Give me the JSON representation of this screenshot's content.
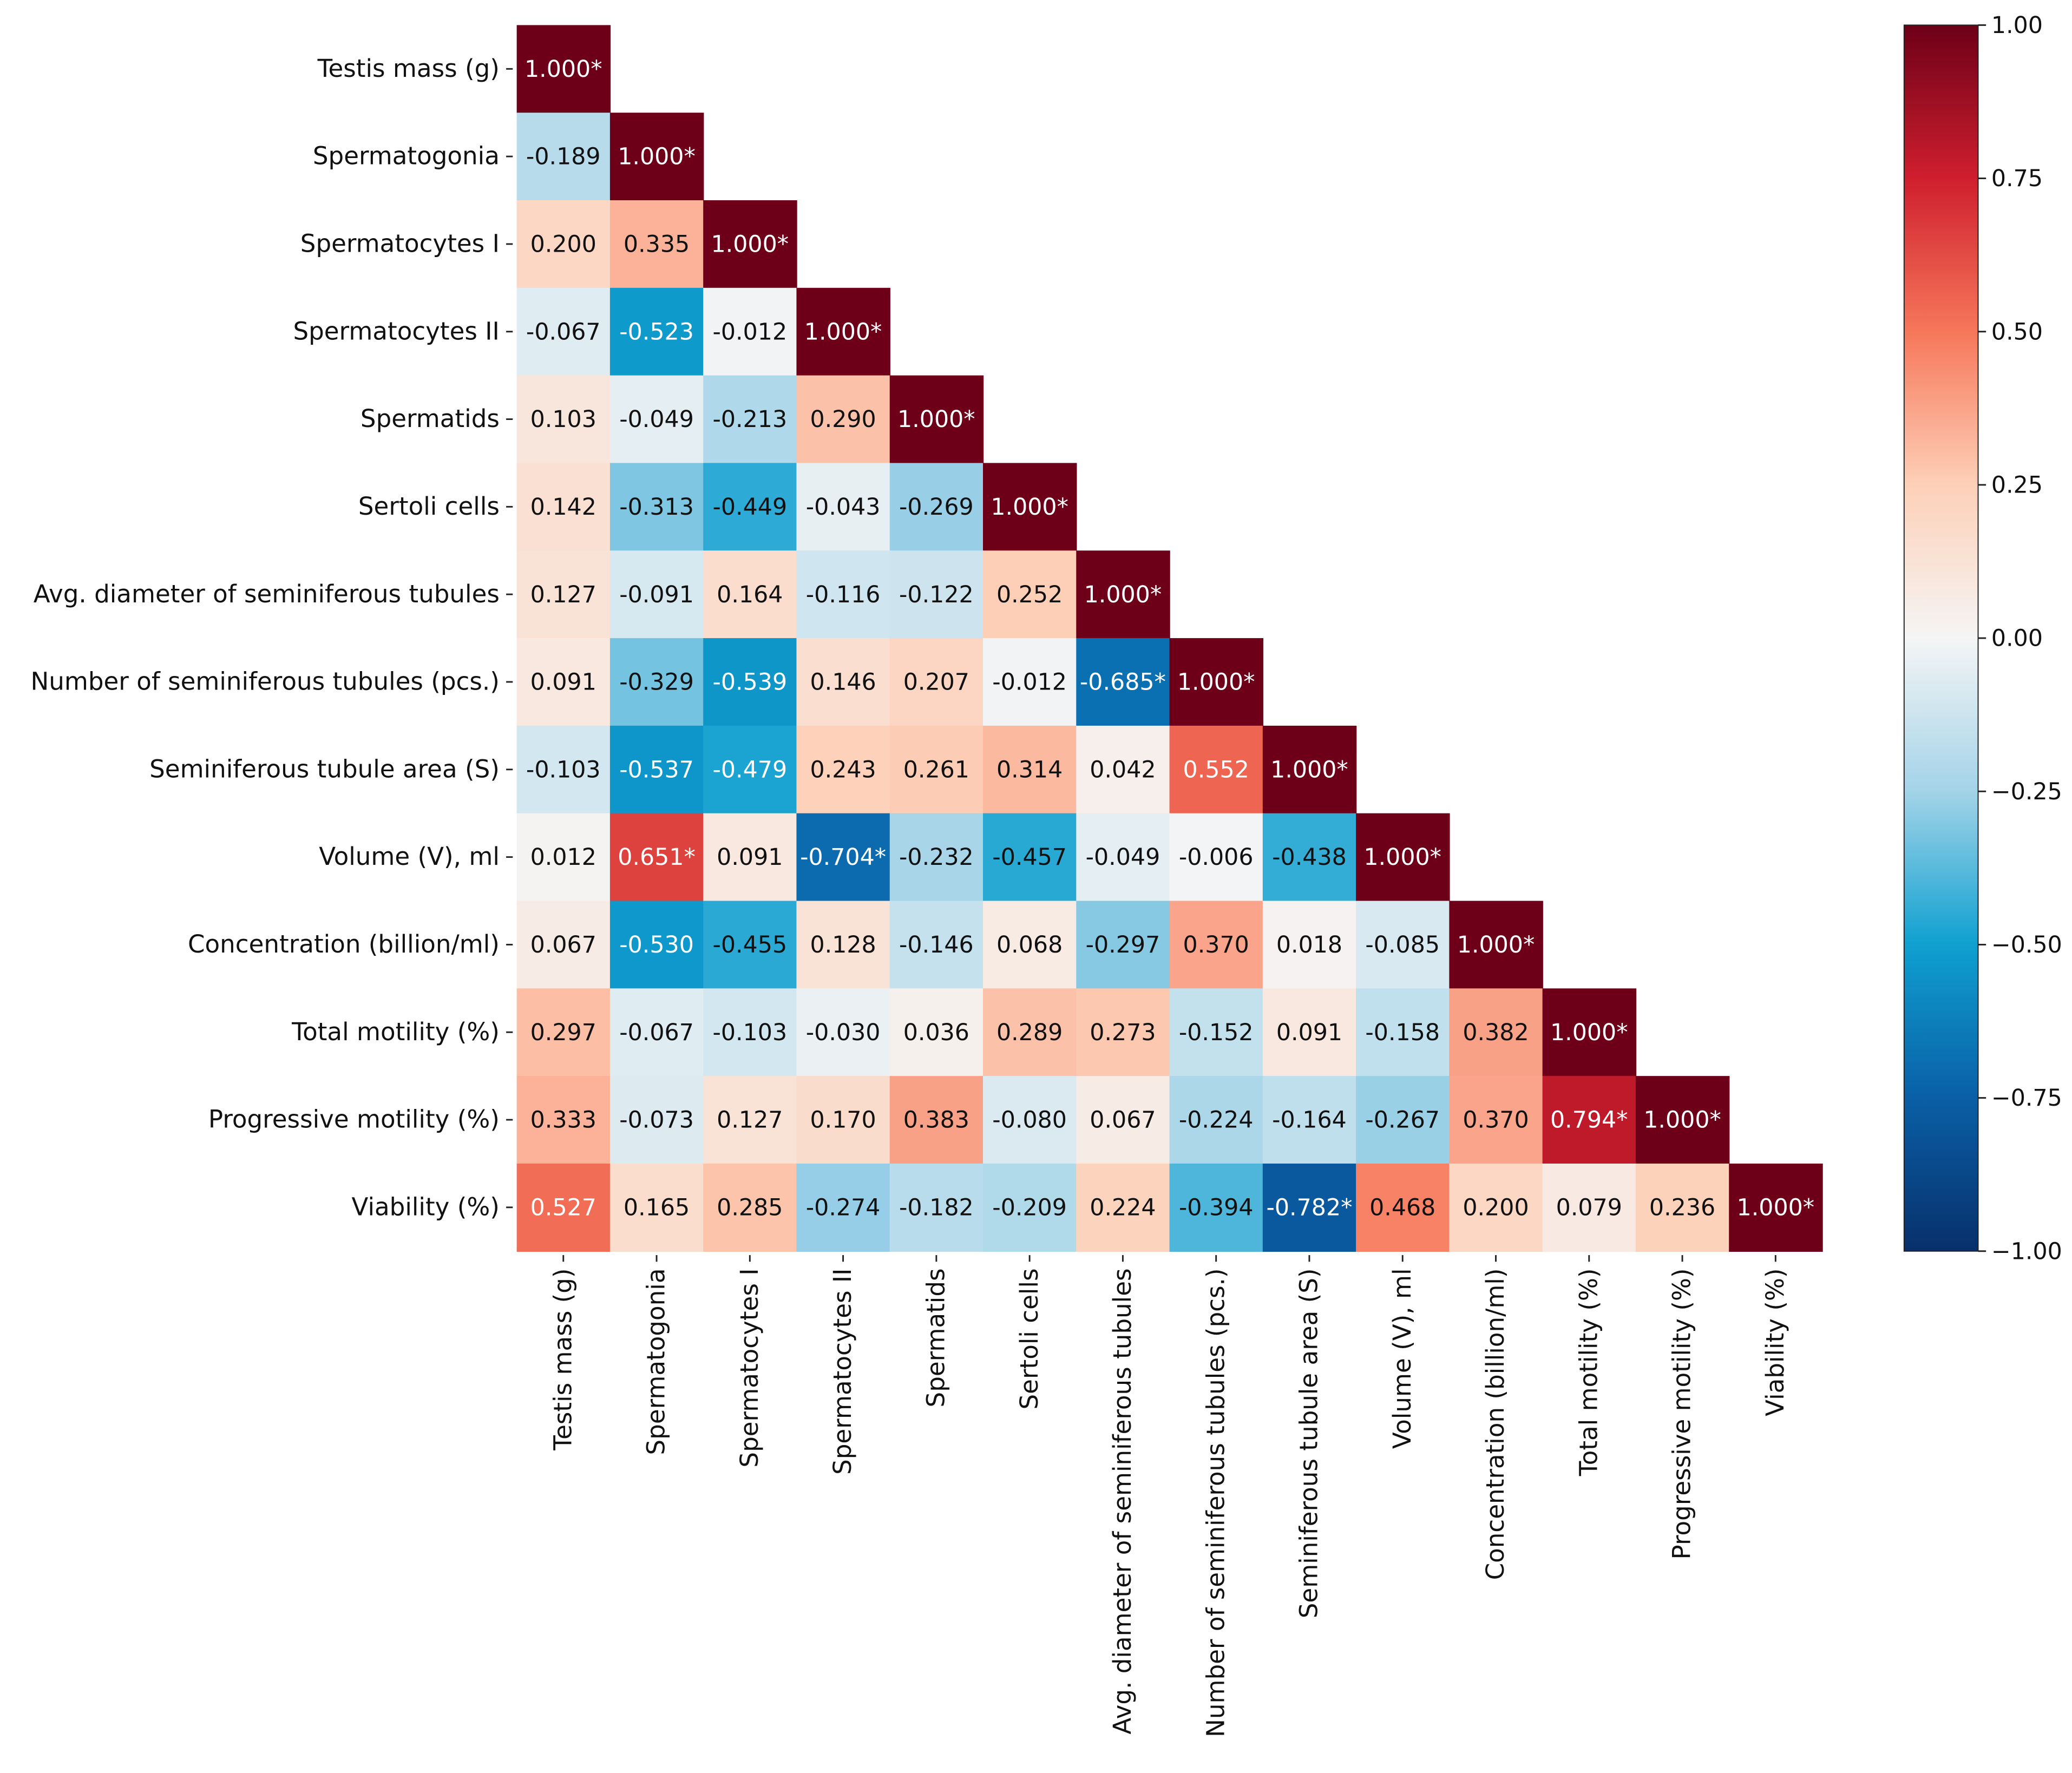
{
  "chart_data": {
    "type": "heatmap",
    "title": "",
    "labels": [
      "Testis mass (g)",
      "Spermatogonia",
      "Spermatocytes I",
      "Spermatocytes II",
      "Spermatids",
      "Sertoli cells",
      "Avg. diameter of seminiferous tubules",
      "Number of seminiferous tubules (pcs.)",
      "Seminiferous tubule area (S)",
      "Volume (V), ml",
      "Concentration (billion/ml)",
      "Total motility (%)",
      "Progressive motility (%)",
      "Viability (%)"
    ],
    "triangle": "lower",
    "annotations": [
      [
        "1.000*"
      ],
      [
        "-0.189",
        "1.000*"
      ],
      [
        "0.200",
        "0.335",
        "1.000*"
      ],
      [
        "-0.067",
        "-0.523",
        "-0.012",
        "1.000*"
      ],
      [
        "0.103",
        "-0.049",
        "-0.213",
        "0.290",
        "1.000*"
      ],
      [
        "0.142",
        "-0.313",
        "-0.449",
        "-0.043",
        "-0.269",
        "1.000*"
      ],
      [
        "0.127",
        "-0.091",
        "0.164",
        "-0.116",
        "-0.122",
        "0.252",
        "1.000*"
      ],
      [
        "0.091",
        "-0.329",
        "-0.539",
        "0.146",
        "0.207",
        "-0.012",
        "-0.685*",
        "1.000*"
      ],
      [
        "-0.103",
        "-0.537",
        "-0.479",
        "0.243",
        "0.261",
        "0.314",
        "0.042",
        "0.552",
        "1.000*"
      ],
      [
        "0.012",
        "0.651*",
        "0.091",
        "-0.704*",
        "-0.232",
        "-0.457",
        "-0.049",
        "-0.006",
        "-0.438",
        "1.000*"
      ],
      [
        "0.067",
        "-0.530",
        "-0.455",
        "0.128",
        "-0.146",
        "0.068",
        "-0.297",
        "0.370",
        "0.018",
        "-0.085",
        "1.000*"
      ],
      [
        "0.297",
        "-0.067",
        "-0.103",
        "-0.030",
        "0.036",
        "0.289",
        "0.273",
        "-0.152",
        "0.091",
        "-0.158",
        "0.382",
        "1.000*"
      ],
      [
        "0.333",
        "-0.073",
        "0.127",
        "0.170",
        "0.383",
        "-0.080",
        "0.067",
        "-0.224",
        "-0.164",
        "-0.267",
        "0.370",
        "0.794*",
        "1.000*"
      ],
      [
        "0.527",
        "0.165",
        "0.285",
        "-0.274",
        "-0.182",
        "-0.209",
        "0.224",
        "-0.394",
        "-0.782*",
        "0.468",
        "0.200",
        "0.079",
        "0.236",
        "1.000*"
      ]
    ],
    "colorbar": {
      "range": [
        -1,
        1
      ],
      "ticks": [
        "1.00",
        "0.75",
        "0.50",
        "0.25",
        "0.00",
        "−0.25",
        "−0.50",
        "−0.75",
        "−1.00"
      ],
      "tick_values": [
        1,
        0.75,
        0.5,
        0.25,
        0,
        -0.25,
        -0.5,
        -0.75,
        -1
      ]
    },
    "colormap": {
      "stops": [
        -1,
        -0.75,
        -0.5,
        -0.25,
        0,
        0.25,
        0.5,
        0.75,
        1
      ],
      "colors": [
        "#08306b",
        "#0a5fa6",
        "#0fa0d0",
        "#a3d3e8",
        "#f5f5f5",
        "#fdd0b8",
        "#f6775a",
        "#cf1f2e",
        "#6d0018"
      ]
    },
    "grid": false,
    "legend": "right"
  }
}
